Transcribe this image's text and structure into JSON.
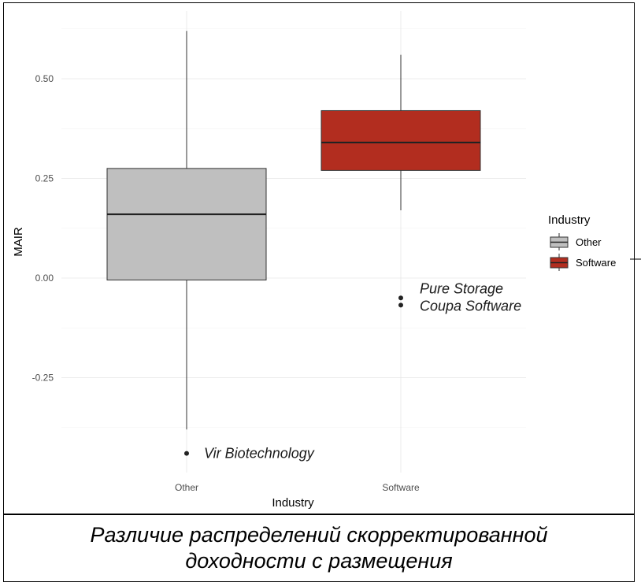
{
  "caption": "Различие распределений скорректированной доходности с размещения",
  "chart_data": {
    "type": "boxplot",
    "xlabel": "Industry",
    "ylabel": "MAIR",
    "categories": [
      "Other",
      "Software"
    ],
    "yticks": [
      -0.25,
      0.0,
      0.25,
      0.5
    ],
    "ytick_labels": [
      "-0.25",
      "0.00",
      "0.25",
      "0.50"
    ],
    "ylim": [
      -0.5,
      0.63
    ],
    "grid": true,
    "legend": {
      "title": "Industry",
      "placement": "right",
      "entries": [
        {
          "label": "Other",
          "color": "#bfbfbf"
        },
        {
          "label": "Software",
          "color": "#b22d1f"
        }
      ]
    },
    "boxes": [
      {
        "category": "Other",
        "whisker_low": -0.38,
        "q1": -0.005,
        "median": 0.16,
        "q3": 0.275,
        "whisker_high": 0.62,
        "color": "#bfbfbf"
      },
      {
        "category": "Software",
        "whisker_low": 0.17,
        "q1": 0.27,
        "median": 0.34,
        "q3": 0.42,
        "whisker_high": 0.56,
        "color": "#b22d1f"
      }
    ],
    "outliers": [
      {
        "category": "Other",
        "y": -0.44,
        "label": "Vir Biotechnology"
      },
      {
        "category": "Software",
        "y": -0.05,
        "label": "Pure Storage"
      },
      {
        "category": "Software",
        "y": -0.068,
        "label": "Coupa Software"
      }
    ]
  }
}
